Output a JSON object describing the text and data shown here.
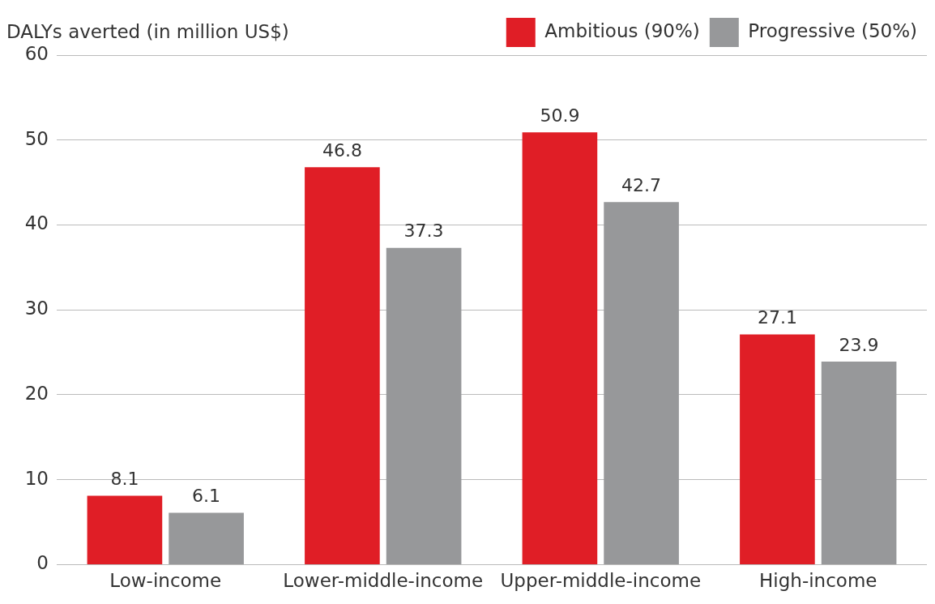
{
  "chart_data": {
    "type": "bar",
    "ylabel": "DALYs averted (in million US$)",
    "categories": [
      "Low-income",
      "Lower-middle-income",
      "Upper-middle-income",
      "High-income"
    ],
    "series": [
      {
        "name": "Ambitious (90%)",
        "color": "#e01e26",
        "values": [
          8.1,
          46.8,
          50.9,
          27.1
        ]
      },
      {
        "name": "Progressive (50%)",
        "color": "#97989a",
        "values": [
          6.1,
          37.3,
          42.7,
          23.9
        ]
      }
    ],
    "ylim": [
      0,
      60
    ],
    "yticks": [
      0,
      10,
      20,
      30,
      40,
      50,
      60
    ],
    "grid": "y",
    "legend": "top right",
    "data_labels": true
  }
}
